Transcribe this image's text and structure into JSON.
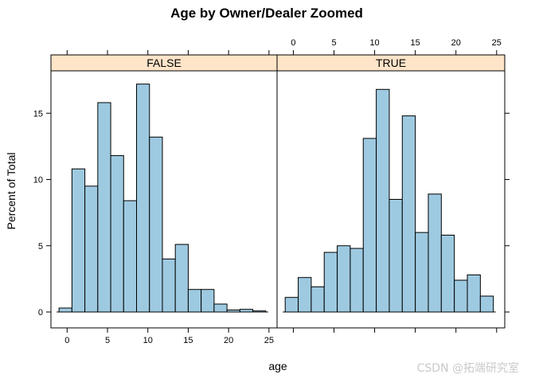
{
  "chart_data": {
    "type": "bar",
    "title": "Age by Owner/Dealer Zoomed",
    "xlabel": "age",
    "ylabel": "Percent of Total",
    "xlim": [
      -2,
      26
    ],
    "ylim": [
      -1.2,
      18.2
    ],
    "x_ticks": [
      0,
      5,
      10,
      15,
      20,
      25
    ],
    "y_ticks": [
      0,
      5,
      10,
      15
    ],
    "bin_width": 1.6,
    "panels": [
      {
        "strip_label": "FALSE",
        "bars": [
          {
            "x0": -1.0,
            "x1": 0.6,
            "value": 0.3
          },
          {
            "x0": 0.6,
            "x1": 2.2,
            "value": 10.8
          },
          {
            "x0": 2.2,
            "x1": 3.8,
            "value": 9.5
          },
          {
            "x0": 3.8,
            "x1": 5.4,
            "value": 15.8
          },
          {
            "x0": 5.4,
            "x1": 7.0,
            "value": 11.8
          },
          {
            "x0": 7.0,
            "x1": 8.6,
            "value": 8.4
          },
          {
            "x0": 8.6,
            "x1": 10.2,
            "value": 17.2
          },
          {
            "x0": 10.2,
            "x1": 11.8,
            "value": 13.2
          },
          {
            "x0": 11.8,
            "x1": 13.4,
            "value": 4.0
          },
          {
            "x0": 13.4,
            "x1": 15.0,
            "value": 5.1
          },
          {
            "x0": 15.0,
            "x1": 16.6,
            "value": 1.7
          },
          {
            "x0": 16.6,
            "x1": 18.2,
            "value": 1.7
          },
          {
            "x0": 18.2,
            "x1": 19.8,
            "value": 0.6
          },
          {
            "x0": 19.8,
            "x1": 21.4,
            "value": 0.15
          },
          {
            "x0": 21.4,
            "x1": 23.0,
            "value": 0.2
          },
          {
            "x0": 23.0,
            "x1": 24.6,
            "value": 0.08
          }
        ]
      },
      {
        "strip_label": "TRUE",
        "bars": [
          {
            "x0": -1.0,
            "x1": 0.6,
            "value": 1.1
          },
          {
            "x0": 0.6,
            "x1": 2.2,
            "value": 2.6
          },
          {
            "x0": 2.2,
            "x1": 3.8,
            "value": 1.9
          },
          {
            "x0": 3.8,
            "x1": 5.4,
            "value": 4.5
          },
          {
            "x0": 5.4,
            "x1": 7.0,
            "value": 5.0
          },
          {
            "x0": 7.0,
            "x1": 8.6,
            "value": 4.8
          },
          {
            "x0": 8.6,
            "x1": 10.2,
            "value": 13.1
          },
          {
            "x0": 10.2,
            "x1": 11.8,
            "value": 16.8
          },
          {
            "x0": 11.8,
            "x1": 13.4,
            "value": 8.5
          },
          {
            "x0": 13.4,
            "x1": 15.0,
            "value": 14.8
          },
          {
            "x0": 15.0,
            "x1": 16.6,
            "value": 6.0
          },
          {
            "x0": 16.6,
            "x1": 18.2,
            "value": 8.9
          },
          {
            "x0": 18.2,
            "x1": 19.8,
            "value": 5.8
          },
          {
            "x0": 19.8,
            "x1": 21.4,
            "value": 2.4
          },
          {
            "x0": 21.4,
            "x1": 23.0,
            "value": 2.8
          },
          {
            "x0": 23.0,
            "x1": 24.6,
            "value": 1.2
          }
        ]
      }
    ],
    "grid": false
  },
  "watermark": "CSDN @拓端研究室"
}
